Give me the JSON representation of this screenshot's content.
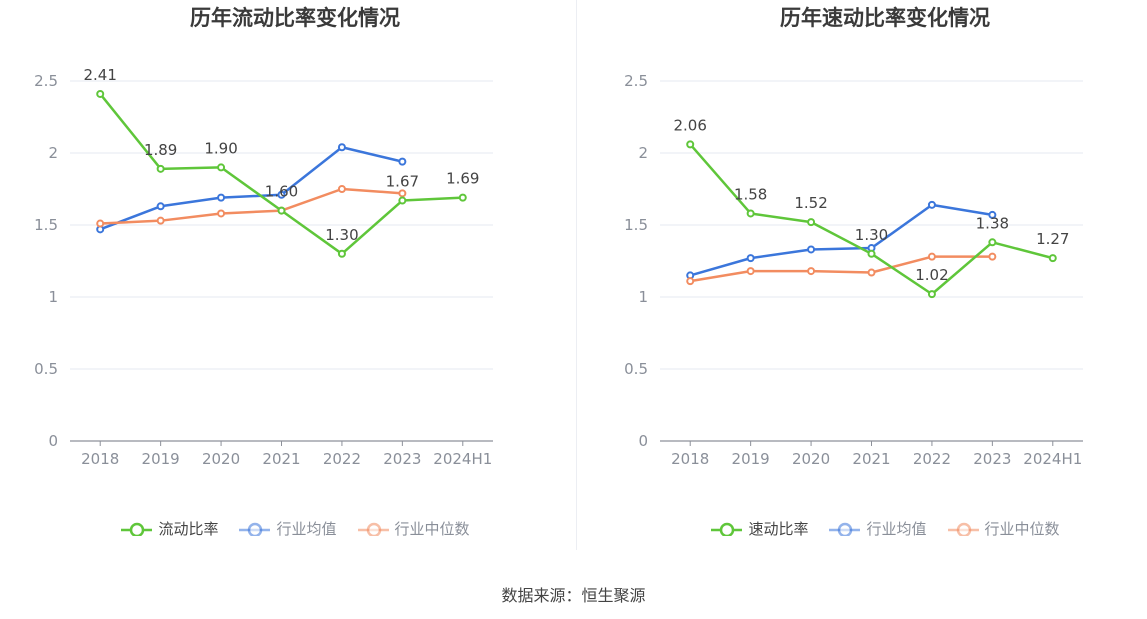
{
  "chart_data": [
    {
      "type": "line",
      "title": "历年流动比率变化情况",
      "categories": [
        "2018",
        "2019",
        "2020",
        "2021",
        "2022",
        "2023",
        "2024H1"
      ],
      "ylim": [
        0,
        2.5
      ],
      "yticks": [
        "0",
        "0.5",
        "1",
        "1.5",
        "2",
        "2.5"
      ],
      "grid": true,
      "legend_position": "bottom",
      "series": [
        {
          "name": "流动比率",
          "color": "#5fc63a",
          "labeled": true,
          "values": [
            2.41,
            1.89,
            1.9,
            1.6,
            1.3,
            1.67,
            1.69
          ],
          "labels": [
            "2.41",
            "1.89",
            "1.90",
            "1.60",
            "1.30",
            "1.67",
            "1.69"
          ]
        },
        {
          "name": "行业均值",
          "color": "#3b76db",
          "labeled": false,
          "values": [
            1.47,
            1.63,
            1.69,
            1.71,
            2.04,
            1.94,
            null
          ]
        },
        {
          "name": "行业中位数",
          "color": "#f28c60",
          "labeled": false,
          "values": [
            1.51,
            1.53,
            1.58,
            1.6,
            1.75,
            1.72,
            null
          ]
        }
      ]
    },
    {
      "type": "line",
      "title": "历年速动比率变化情况",
      "categories": [
        "2018",
        "2019",
        "2020",
        "2021",
        "2022",
        "2023",
        "2024H1"
      ],
      "ylim": [
        0,
        2.5
      ],
      "yticks": [
        "0",
        "0.5",
        "1",
        "1.5",
        "2",
        "2.5"
      ],
      "grid": true,
      "legend_position": "bottom",
      "series": [
        {
          "name": "速动比率",
          "color": "#5fc63a",
          "labeled": true,
          "values": [
            2.06,
            1.58,
            1.52,
            1.3,
            1.02,
            1.38,
            1.27
          ],
          "labels": [
            "2.06",
            "1.58",
            "1.52",
            "1.30",
            "1.02",
            "1.38",
            "1.27"
          ]
        },
        {
          "name": "行业均值",
          "color": "#3b76db",
          "labeled": false,
          "values": [
            1.15,
            1.27,
            1.33,
            1.34,
            1.64,
            1.57,
            null
          ]
        },
        {
          "name": "行业中位数",
          "color": "#f28c60",
          "labeled": false,
          "values": [
            1.11,
            1.18,
            1.18,
            1.17,
            1.28,
            1.28,
            null
          ]
        }
      ]
    }
  ],
  "source_text": "数据来源：恒生聚源"
}
